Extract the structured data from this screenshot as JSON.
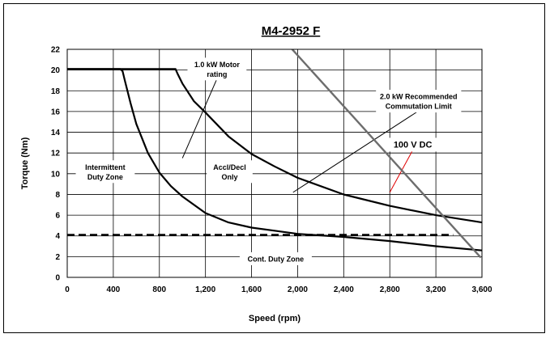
{
  "chart_data": {
    "type": "line",
    "title": "M4-2952 F",
    "xlabel": "Speed (rpm)",
    "ylabel": "Torque (Nm)",
    "xlim": [
      0,
      3600
    ],
    "ylim": [
      0,
      22
    ],
    "xticks": [
      "0",
      "400",
      "800",
      "1,200",
      "1,600",
      "2,000",
      "2,400",
      "2,800",
      "3,200",
      "3,600"
    ],
    "yticks": [
      "0",
      "2",
      "4",
      "6",
      "8",
      "10",
      "12",
      "14",
      "16",
      "18",
      "20",
      "22"
    ],
    "grid": true,
    "legend": "none",
    "series": [
      {
        "key": "motor",
        "color": "#000000",
        "style": "solid",
        "x": [
          0,
          460,
          480,
          500,
          550,
          600,
          700,
          800,
          900,
          1000,
          1200,
          1400,
          1600,
          1800,
          2000,
          2400,
          2800,
          3200,
          3600
        ],
        "y": [
          20.1,
          20.1,
          19.9,
          19.0,
          16.8,
          14.8,
          12.0,
          10.1,
          8.8,
          7.8,
          6.2,
          5.3,
          4.8,
          4.5,
          4.2,
          3.9,
          3.5,
          3.0,
          2.6
        ]
      },
      {
        "key": "commutation",
        "color": "#000000",
        "style": "solid",
        "x": [
          0,
          940,
          960,
          1000,
          1100,
          1200,
          1400,
          1600,
          1800,
          2000,
          2400,
          2800,
          3200,
          3600
        ],
        "y": [
          20.1,
          20.1,
          19.6,
          18.7,
          17.0,
          15.9,
          13.6,
          11.9,
          10.7,
          9.6,
          8.0,
          6.9,
          6.0,
          5.3
        ]
      },
      {
        "key": "voltage",
        "color": "#6d6d6d",
        "style": "solid",
        "x": [
          1790,
          3590
        ],
        "y": [
          24.0,
          1.9
        ]
      },
      {
        "key": "continuous",
        "color": "#000000",
        "style": "dashed",
        "x": [
          0,
          3350
        ],
        "y": [
          4.1,
          4.1
        ]
      }
    ],
    "annotations": [
      {
        "key": "motor_rating",
        "lines": [
          "1.0 kW Motor",
          "rating"
        ],
        "x": 1300,
        "y": 20.1,
        "arrow_to": [
          1000,
          11.5
        ]
      },
      {
        "key": "comm_limit",
        "lines": [
          "2.0 kW Recommended",
          "Commutation Limit"
        ],
        "x": 3050,
        "y": 17.0,
        "arrow_to": [
          1960,
          8.2
        ]
      },
      {
        "key": "voltage_label",
        "lines": [
          "100 V DC"
        ],
        "x": 3000,
        "y": 12.8,
        "arrow_to": [
          2800,
          8.2
        ],
        "arrow_color": "#e00000"
      },
      {
        "key": "intermittent",
        "lines": [
          "Intermittent",
          "Duty Zone"
        ],
        "x": 330,
        "y": 10.2
      },
      {
        "key": "accl",
        "lines": [
          "Accl/Decl",
          "Only"
        ],
        "x": 1410,
        "y": 10.2
      },
      {
        "key": "cont",
        "lines": [
          "Cont. Duty Zone"
        ],
        "x": 1810,
        "y": 1.8
      }
    ]
  }
}
